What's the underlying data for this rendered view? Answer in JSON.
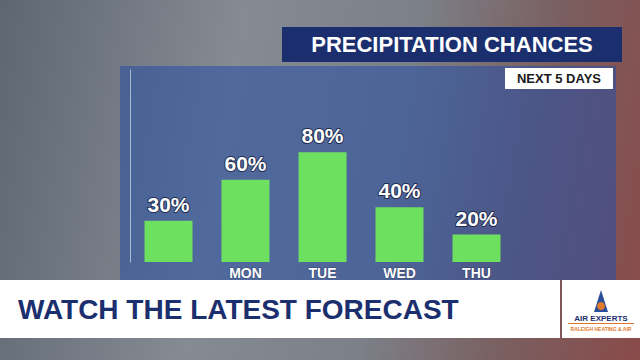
{
  "chart_data": {
    "type": "bar",
    "title": "PRECIPITATION CHANCES",
    "subtitle": "NEXT 5 DAYS",
    "categories": [
      null,
      "MON",
      "TUE",
      "WED",
      "THU"
    ],
    "values": [
      30,
      60,
      80,
      40,
      20
    ],
    "value_labels": [
      "30%",
      "60%",
      "80%",
      "40%",
      "20%"
    ],
    "color": "#6ee05f",
    "ylim": [
      0,
      140
    ],
    "grid": false,
    "data_labels": true,
    "tick_labels": "x"
  },
  "banner": {
    "text": "WATCH THE LATEST FORECAST"
  },
  "logo": {
    "name": "AIR EXPERTS",
    "tagline": "RALEIGH HEATING & AIR"
  }
}
